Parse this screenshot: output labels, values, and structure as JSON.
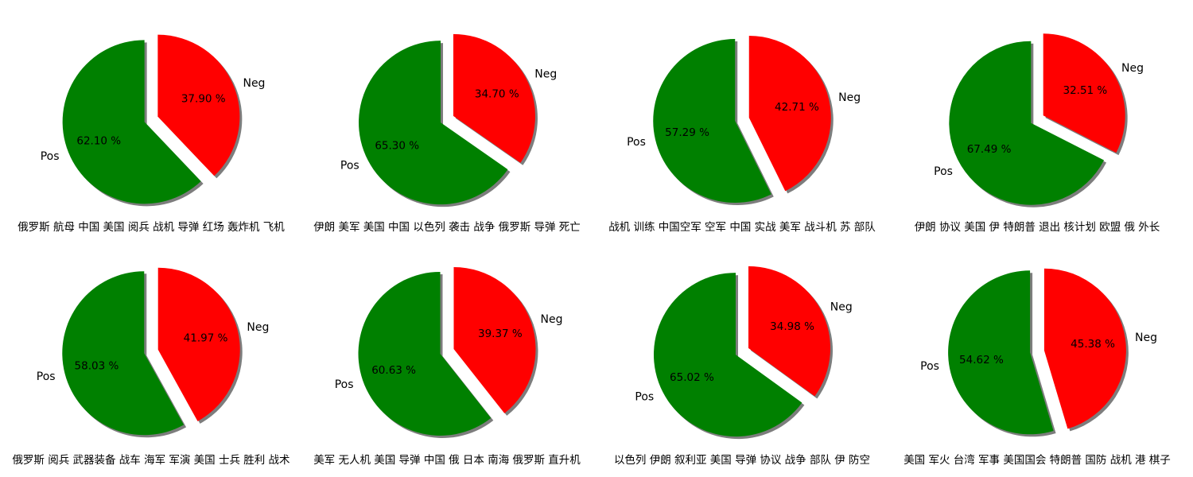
{
  "colors": {
    "pos": "#008000",
    "neg": "#ff0000",
    "shadow": "#666666"
  },
  "chart_data": [
    {
      "type": "pie",
      "title": "俄罗斯 航母 中国 美国 阅兵 战机 导弹 红场 轰炸机 飞机",
      "slices": [
        {
          "label": "Pos",
          "value": 62.1,
          "pct_text": "62.10 %"
        },
        {
          "label": "Neg",
          "value": 37.9,
          "pct_text": "37.90 %"
        }
      ]
    },
    {
      "type": "pie",
      "title": "伊朗 美军 美国 中国 以色列 袭击 战争 俄罗斯 导弹 死亡",
      "slices": [
        {
          "label": "Pos",
          "value": 65.3,
          "pct_text": "65.30 %"
        },
        {
          "label": "Neg",
          "value": 34.7,
          "pct_text": "34.70 %"
        }
      ]
    },
    {
      "type": "pie",
      "title": "战机 训练 中国空军 空军 中国 实战 美军 战斗机 苏 部队",
      "slices": [
        {
          "label": "Pos",
          "value": 57.29,
          "pct_text": "57.29 %"
        },
        {
          "label": "Neg",
          "value": 42.71,
          "pct_text": "42.71 %"
        }
      ]
    },
    {
      "type": "pie",
      "title": "伊朗 协议 美国 伊 特朗普 退出 核计划 欧盟 俄 外长",
      "slices": [
        {
          "label": "Pos",
          "value": 67.49,
          "pct_text": "67.49 %"
        },
        {
          "label": "Neg",
          "value": 32.51,
          "pct_text": "32.51 %"
        }
      ]
    },
    {
      "type": "pie",
      "title": "俄罗斯 阅兵 武器装备 战车 海军 军演 美国 士兵 胜利 战术",
      "slices": [
        {
          "label": "Pos",
          "value": 58.03,
          "pct_text": "58.03 %"
        },
        {
          "label": "Neg",
          "value": 41.97,
          "pct_text": "41.97 %"
        }
      ]
    },
    {
      "type": "pie",
      "title": "美军 无人机 美国 导弹 中国 俄 日本 南海 俄罗斯 直升机",
      "slices": [
        {
          "label": "Pos",
          "value": 60.63,
          "pct_text": "60.63 %"
        },
        {
          "label": "Neg",
          "value": 39.37,
          "pct_text": "39.37 %"
        }
      ]
    },
    {
      "type": "pie",
      "title": "以色列 伊朗 叙利亚 美国 导弹 协议 战争 部队 伊 防空",
      "slices": [
        {
          "label": "Pos",
          "value": 65.02,
          "pct_text": "65.02 %"
        },
        {
          "label": "Neg",
          "value": 34.98,
          "pct_text": "34.98 %"
        }
      ]
    },
    {
      "type": "pie",
      "title": "美国 军火 台湾 军事 美国国会 特朗普 国防 战机 港 棋子",
      "slices": [
        {
          "label": "Pos",
          "value": 54.62,
          "pct_text": "54.62 %"
        },
        {
          "label": "Neg",
          "value": 45.38,
          "pct_text": "45.38 %"
        }
      ]
    }
  ]
}
